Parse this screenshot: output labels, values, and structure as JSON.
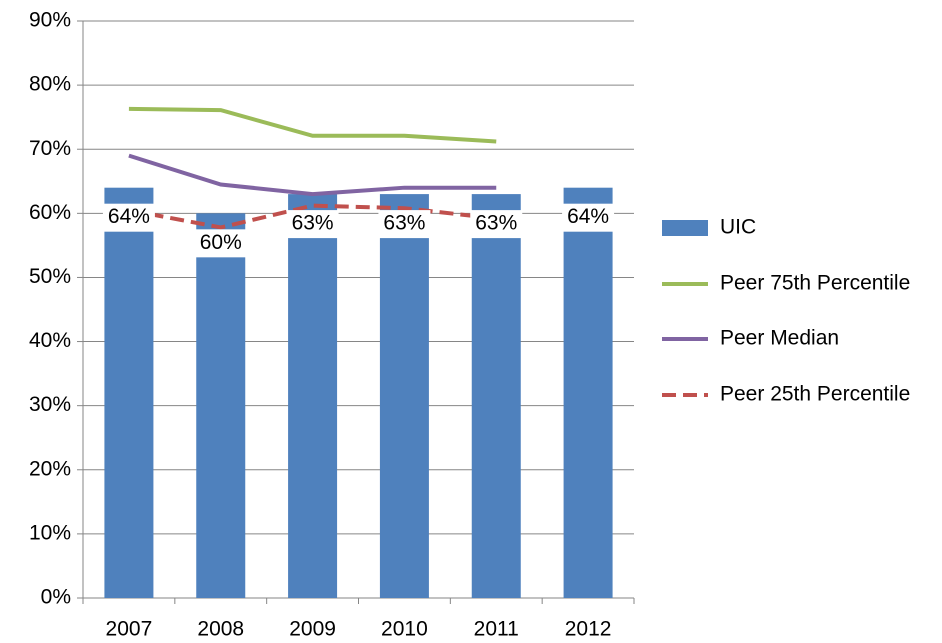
{
  "chart_data": {
    "type": "bar_line",
    "categories": [
      "2007",
      "2008",
      "2009",
      "2010",
      "2011",
      "2012"
    ],
    "series": [
      {
        "name": "UIC",
        "type": "bar",
        "color": "#4f81bd",
        "values": [
          64,
          60,
          63,
          63,
          63,
          64
        ],
        "value_labels": [
          "64%",
          "60%",
          "63%",
          "63%",
          "63%",
          "64%"
        ]
      },
      {
        "name": "Peer 75th Percentile",
        "type": "line",
        "color": "#9bbb59",
        "values": [
          76.3,
          76.1,
          72.1,
          72.1,
          71.2,
          null
        ]
      },
      {
        "name": "Peer Median",
        "type": "line",
        "color": "#8064a2",
        "values": [
          69,
          64.5,
          63,
          64,
          64,
          null
        ]
      },
      {
        "name": "Peer 25th Percentile",
        "type": "line",
        "color": "#c0504d",
        "dashed": true,
        "values": [
          60.5,
          57.8,
          61.2,
          60.8,
          59.2,
          null
        ]
      }
    ],
    "ylim": [
      0,
      90
    ],
    "yticks": [
      {
        "value": 0,
        "label": "0%"
      },
      {
        "value": 10,
        "label": "10%"
      },
      {
        "value": 20,
        "label": "20%"
      },
      {
        "value": 30,
        "label": "30%"
      },
      {
        "value": 40,
        "label": "40%"
      },
      {
        "value": 50,
        "label": "50%"
      },
      {
        "value": 60,
        "label": "60%"
      },
      {
        "value": 70,
        "label": "70%"
      },
      {
        "value": 80,
        "label": "80%"
      },
      {
        "value": 90,
        "label": "90%"
      }
    ],
    "grid": true,
    "legend": "right"
  }
}
